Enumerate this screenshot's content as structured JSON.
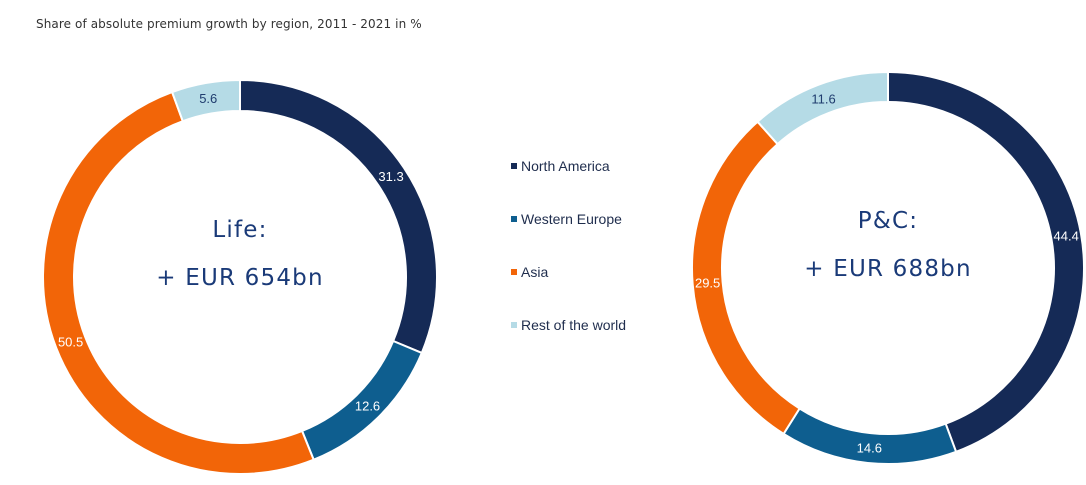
{
  "title": "Share of absolute premium growth by region, 2011 - 2021 in %",
  "legend": [
    {
      "label": "North America",
      "color": "#152a56"
    },
    {
      "label": "Western Europe",
      "color": "#0e5e8f"
    },
    {
      "label": "Asia",
      "color": "#f26508"
    },
    {
      "label": "Rest of the world",
      "color": "#b5dbe6"
    }
  ],
  "chart_data": [
    {
      "type": "pie",
      "center_line1": "Life:",
      "center_line2": "+ EUR 654bn",
      "categories": [
        "North America",
        "Western Europe",
        "Asia",
        "Rest of the world"
      ],
      "values": [
        31.3,
        12.6,
        50.5,
        5.6
      ],
      "labels": [
        "31.3",
        "12.6",
        "50.5",
        "5.6"
      ]
    },
    {
      "type": "pie",
      "center_line1": "P&C:",
      "center_line2": "+ EUR 688bn",
      "categories": [
        "North America",
        "Western Europe",
        "Asia",
        "Rest of the world"
      ],
      "values": [
        44.4,
        14.6,
        29.5,
        11.6
      ],
      "labels": [
        "44.4",
        "14.6",
        "29.5",
        "11.6"
      ]
    }
  ]
}
